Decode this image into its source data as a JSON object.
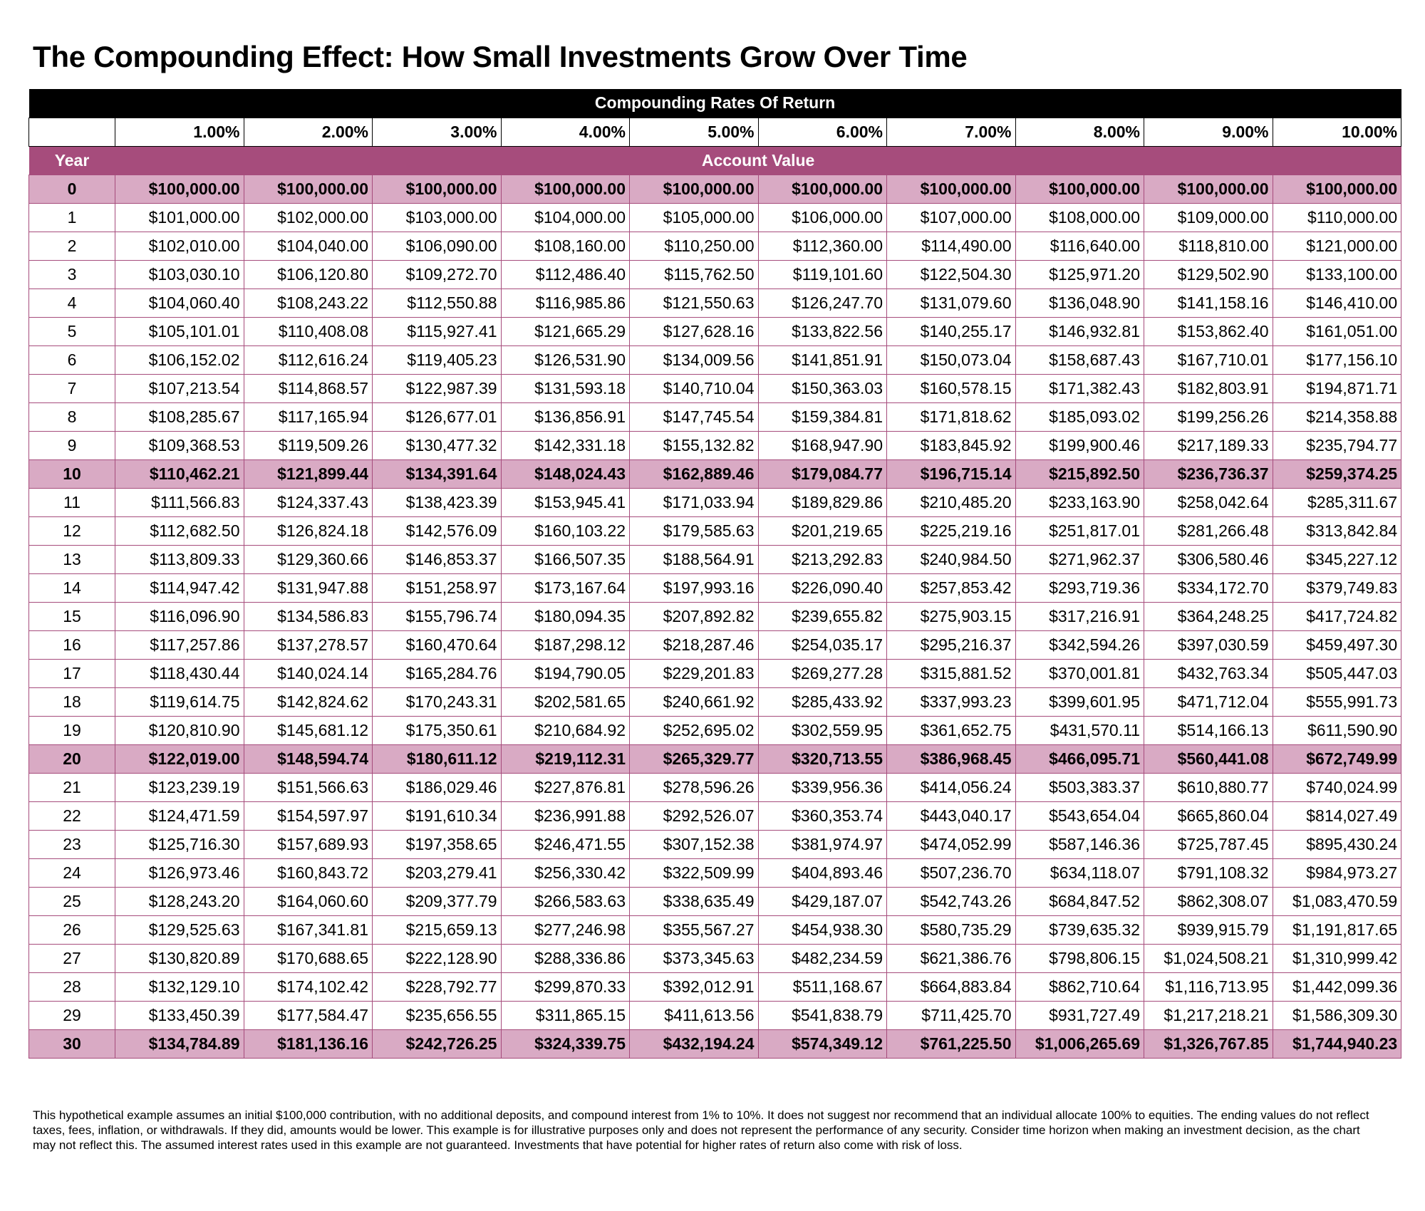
{
  "title": "The Compounding Effect: How Small Investments Grow Over Time",
  "table": {
    "header": "Compounding Rates Of Return",
    "year_label": "Year",
    "account_value_label": "Account Value",
    "rates": [
      "1.00%",
      "2.00%",
      "3.00%",
      "4.00%",
      "5.00%",
      "6.00%",
      "7.00%",
      "8.00%",
      "9.00%",
      "10.00%"
    ],
    "highlight_years": [
      "0",
      "10",
      "20",
      "30"
    ],
    "highlight_color": "#d9aac4",
    "accent_color": "#a64c7c",
    "rows": [
      {
        "year": "0",
        "values": [
          "$100,000.00",
          "$100,000.00",
          "$100,000.00",
          "$100,000.00",
          "$100,000.00",
          "$100,000.00",
          "$100,000.00",
          "$100,000.00",
          "$100,000.00",
          "$100,000.00"
        ]
      },
      {
        "year": "1",
        "values": [
          "$101,000.00",
          "$102,000.00",
          "$103,000.00",
          "$104,000.00",
          "$105,000.00",
          "$106,000.00",
          "$107,000.00",
          "$108,000.00",
          "$109,000.00",
          "$110,000.00"
        ]
      },
      {
        "year": "2",
        "values": [
          "$102,010.00",
          "$104,040.00",
          "$106,090.00",
          "$108,160.00",
          "$110,250.00",
          "$112,360.00",
          "$114,490.00",
          "$116,640.00",
          "$118,810.00",
          "$121,000.00"
        ]
      },
      {
        "year": "3",
        "values": [
          "$103,030.10",
          "$106,120.80",
          "$109,272.70",
          "$112,486.40",
          "$115,762.50",
          "$119,101.60",
          "$122,504.30",
          "$125,971.20",
          "$129,502.90",
          "$133,100.00"
        ]
      },
      {
        "year": "4",
        "values": [
          "$104,060.40",
          "$108,243.22",
          "$112,550.88",
          "$116,985.86",
          "$121,550.63",
          "$126,247.70",
          "$131,079.60",
          "$136,048.90",
          "$141,158.16",
          "$146,410.00"
        ]
      },
      {
        "year": "5",
        "values": [
          "$105,101.01",
          "$110,408.08",
          "$115,927.41",
          "$121,665.29",
          "$127,628.16",
          "$133,822.56",
          "$140,255.17",
          "$146,932.81",
          "$153,862.40",
          "$161,051.00"
        ]
      },
      {
        "year": "6",
        "values": [
          "$106,152.02",
          "$112,616.24",
          "$119,405.23",
          "$126,531.90",
          "$134,009.56",
          "$141,851.91",
          "$150,073.04",
          "$158,687.43",
          "$167,710.01",
          "$177,156.10"
        ]
      },
      {
        "year": "7",
        "values": [
          "$107,213.54",
          "$114,868.57",
          "$122,987.39",
          "$131,593.18",
          "$140,710.04",
          "$150,363.03",
          "$160,578.15",
          "$171,382.43",
          "$182,803.91",
          "$194,871.71"
        ]
      },
      {
        "year": "8",
        "values": [
          "$108,285.67",
          "$117,165.94",
          "$126,677.01",
          "$136,856.91",
          "$147,745.54",
          "$159,384.81",
          "$171,818.62",
          "$185,093.02",
          "$199,256.26",
          "$214,358.88"
        ]
      },
      {
        "year": "9",
        "values": [
          "$109,368.53",
          "$119,509.26",
          "$130,477.32",
          "$142,331.18",
          "$155,132.82",
          "$168,947.90",
          "$183,845.92",
          "$199,900.46",
          "$217,189.33",
          "$235,794.77"
        ]
      },
      {
        "year": "10",
        "values": [
          "$110,462.21",
          "$121,899.44",
          "$134,391.64",
          "$148,024.43",
          "$162,889.46",
          "$179,084.77",
          "$196,715.14",
          "$215,892.50",
          "$236,736.37",
          "$259,374.25"
        ]
      },
      {
        "year": "11",
        "values": [
          "$111,566.83",
          "$124,337.43",
          "$138,423.39",
          "$153,945.41",
          "$171,033.94",
          "$189,829.86",
          "$210,485.20",
          "$233,163.90",
          "$258,042.64",
          "$285,311.67"
        ]
      },
      {
        "year": "12",
        "values": [
          "$112,682.50",
          "$126,824.18",
          "$142,576.09",
          "$160,103.22",
          "$179,585.63",
          "$201,219.65",
          "$225,219.16",
          "$251,817.01",
          "$281,266.48",
          "$313,842.84"
        ]
      },
      {
        "year": "13",
        "values": [
          "$113,809.33",
          "$129,360.66",
          "$146,853.37",
          "$166,507.35",
          "$188,564.91",
          "$213,292.83",
          "$240,984.50",
          "$271,962.37",
          "$306,580.46",
          "$345,227.12"
        ]
      },
      {
        "year": "14",
        "values": [
          "$114,947.42",
          "$131,947.88",
          "$151,258.97",
          "$173,167.64",
          "$197,993.16",
          "$226,090.40",
          "$257,853.42",
          "$293,719.36",
          "$334,172.70",
          "$379,749.83"
        ]
      },
      {
        "year": "15",
        "values": [
          "$116,096.90",
          "$134,586.83",
          "$155,796.74",
          "$180,094.35",
          "$207,892.82",
          "$239,655.82",
          "$275,903.15",
          "$317,216.91",
          "$364,248.25",
          "$417,724.82"
        ]
      },
      {
        "year": "16",
        "values": [
          "$117,257.86",
          "$137,278.57",
          "$160,470.64",
          "$187,298.12",
          "$218,287.46",
          "$254,035.17",
          "$295,216.37",
          "$342,594.26",
          "$397,030.59",
          "$459,497.30"
        ]
      },
      {
        "year": "17",
        "values": [
          "$118,430.44",
          "$140,024.14",
          "$165,284.76",
          "$194,790.05",
          "$229,201.83",
          "$269,277.28",
          "$315,881.52",
          "$370,001.81",
          "$432,763.34",
          "$505,447.03"
        ]
      },
      {
        "year": "18",
        "values": [
          "$119,614.75",
          "$142,824.62",
          "$170,243.31",
          "$202,581.65",
          "$240,661.92",
          "$285,433.92",
          "$337,993.23",
          "$399,601.95",
          "$471,712.04",
          "$555,991.73"
        ]
      },
      {
        "year": "19",
        "values": [
          "$120,810.90",
          "$145,681.12",
          "$175,350.61",
          "$210,684.92",
          "$252,695.02",
          "$302,559.95",
          "$361,652.75",
          "$431,570.11",
          "$514,166.13",
          "$611,590.90"
        ]
      },
      {
        "year": "20",
        "values": [
          "$122,019.00",
          "$148,594.74",
          "$180,611.12",
          "$219,112.31",
          "$265,329.77",
          "$320,713.55",
          "$386,968.45",
          "$466,095.71",
          "$560,441.08",
          "$672,749.99"
        ]
      },
      {
        "year": "21",
        "values": [
          "$123,239.19",
          "$151,566.63",
          "$186,029.46",
          "$227,876.81",
          "$278,596.26",
          "$339,956.36",
          "$414,056.24",
          "$503,383.37",
          "$610,880.77",
          "$740,024.99"
        ]
      },
      {
        "year": "22",
        "values": [
          "$124,471.59",
          "$154,597.97",
          "$191,610.34",
          "$236,991.88",
          "$292,526.07",
          "$360,353.74",
          "$443,040.17",
          "$543,654.04",
          "$665,860.04",
          "$814,027.49"
        ]
      },
      {
        "year": "23",
        "values": [
          "$125,716.30",
          "$157,689.93",
          "$197,358.65",
          "$246,471.55",
          "$307,152.38",
          "$381,974.97",
          "$474,052.99",
          "$587,146.36",
          "$725,787.45",
          "$895,430.24"
        ]
      },
      {
        "year": "24",
        "values": [
          "$126,973.46",
          "$160,843.72",
          "$203,279.41",
          "$256,330.42",
          "$322,509.99",
          "$404,893.46",
          "$507,236.70",
          "$634,118.07",
          "$791,108.32",
          "$984,973.27"
        ]
      },
      {
        "year": "25",
        "values": [
          "$128,243.20",
          "$164,060.60",
          "$209,377.79",
          "$266,583.63",
          "$338,635.49",
          "$429,187.07",
          "$542,743.26",
          "$684,847.52",
          "$862,308.07",
          "$1,083,470.59"
        ]
      },
      {
        "year": "26",
        "values": [
          "$129,525.63",
          "$167,341.81",
          "$215,659.13",
          "$277,246.98",
          "$355,567.27",
          "$454,938.30",
          "$580,735.29",
          "$739,635.32",
          "$939,915.79",
          "$1,191,817.65"
        ]
      },
      {
        "year": "27",
        "values": [
          "$130,820.89",
          "$170,688.65",
          "$222,128.90",
          "$288,336.86",
          "$373,345.63",
          "$482,234.59",
          "$621,386.76",
          "$798,806.15",
          "$1,024,508.21",
          "$1,310,999.42"
        ]
      },
      {
        "year": "28",
        "values": [
          "$132,129.10",
          "$174,102.42",
          "$228,792.77",
          "$299,870.33",
          "$392,012.91",
          "$511,168.67",
          "$664,883.84",
          "$862,710.64",
          "$1,116,713.95",
          "$1,442,099.36"
        ]
      },
      {
        "year": "29",
        "values": [
          "$133,450.39",
          "$177,584.47",
          "$235,656.55",
          "$311,865.15",
          "$411,613.56",
          "$541,838.79",
          "$711,425.70",
          "$931,727.49",
          "$1,217,218.21",
          "$1,586,309.30"
        ]
      },
      {
        "year": "30",
        "values": [
          "$134,784.89",
          "$181,136.16",
          "$242,726.25",
          "$324,339.75",
          "$432,194.24",
          "$574,349.12",
          "$761,225.50",
          "$1,006,265.69",
          "$1,326,767.85",
          "$1,744,940.23"
        ]
      }
    ]
  },
  "disclaimer": "This hypothetical example assumes an initial $100,000 contribution, with no additional deposits, and compound interest from 1% to 10%. It does not suggest nor recommend that an individual allocate 100% to equities. The ending values do not reflect taxes, fees, inflation, or withdrawals. If they did, amounts would be lower. This example is for illustrative purposes only and does not represent the performance of any security. Consider time horizon when making an investment decision, as the chart may not reflect this. The assumed interest rates used in this example are not guaranteed. Investments that have potential for higher rates of return also come with risk of loss."
}
